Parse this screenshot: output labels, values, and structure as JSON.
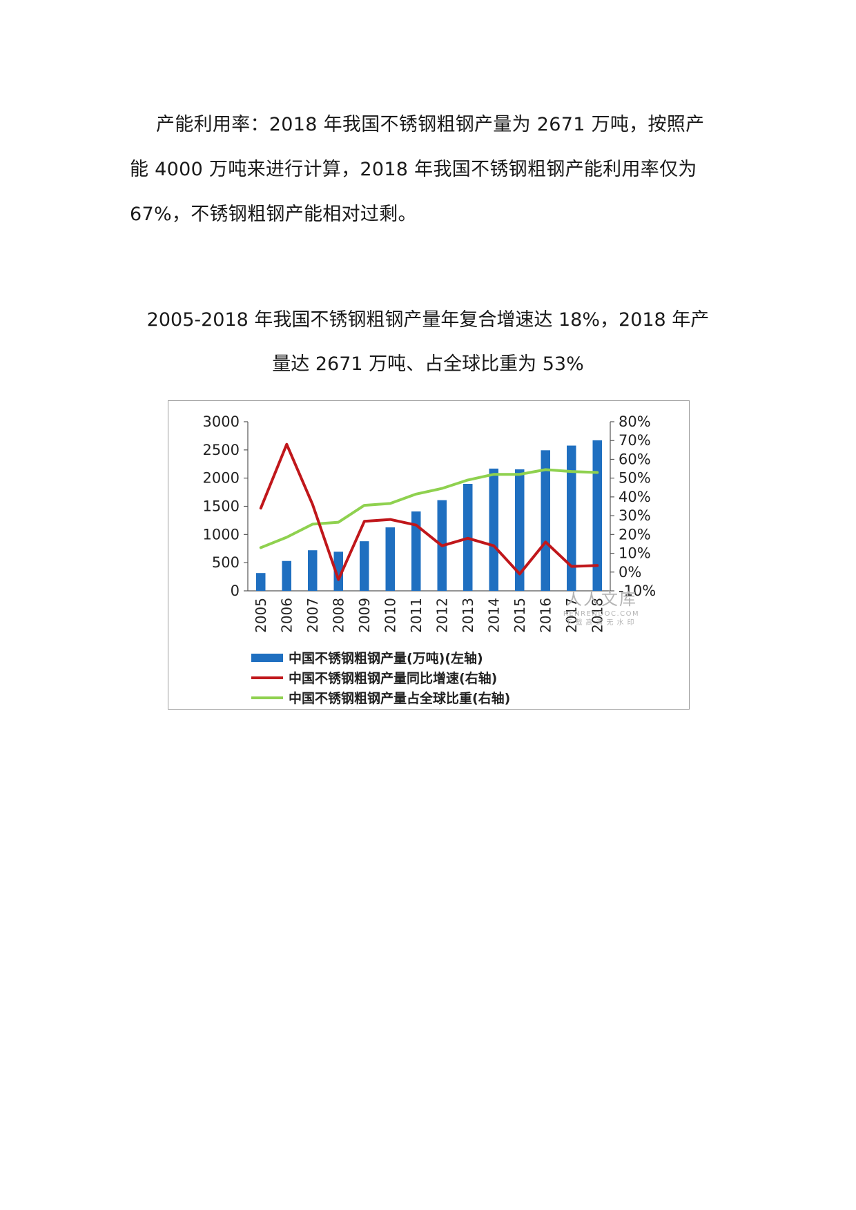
{
  "paragraph": {
    "lines": [
      "产能利用率：2018 年我国不锈钢粗钢产量为 2671 万吨，按照产",
      "能 4000 万吨来进行计算，2018 年我国不锈钢粗钢产能利用率仅为",
      "67%，不锈钢粗钢产能相对过剩。"
    ]
  },
  "figure": {
    "caption_lines": [
      "2005-2018 年我国不锈钢粗钢产量年复合增速达 18%，2018 年产",
      "量达 2671 万吨、占全球比重为 53%"
    ]
  },
  "watermark": {
    "main": "人人文库",
    "url": "RENRENDOC.COM",
    "sub": "下载高清无水印"
  },
  "chart_data": {
    "type": "bar",
    "categories": [
      "2005",
      "2006",
      "2007",
      "2008",
      "2009",
      "2010",
      "2011",
      "2012",
      "2013",
      "2014",
      "2015",
      "2016",
      "2017",
      "2018"
    ],
    "series": [
      {
        "name": "中国不锈钢粗钢产量(万吨)(左轴)",
        "type": "bar",
        "axis": "left",
        "color": "#1f6fc0",
        "values": [
          316,
          530,
          720,
          694,
          880,
          1126,
          1409,
          1609,
          1898,
          2169,
          2156,
          2494,
          2577,
          2671
        ]
      },
      {
        "name": "中国不锈钢粗钢产量同比增速(右轴)",
        "type": "line",
        "axis": "right",
        "color": "#c0171b",
        "values": [
          0.34,
          0.68,
          0.36,
          -0.04,
          0.27,
          0.28,
          0.25,
          0.14,
          0.18,
          0.14,
          -0.01,
          0.16,
          0.03,
          0.035
        ]
      },
      {
        "name": "中国不锈钢粗钢产量占全球比重(右轴)",
        "type": "line",
        "axis": "right",
        "color": "#8fd14f",
        "values": [
          0.13,
          0.185,
          0.255,
          0.265,
          0.355,
          0.365,
          0.415,
          0.445,
          0.49,
          0.52,
          0.52,
          0.545,
          0.535,
          0.53
        ]
      }
    ],
    "left_axis": {
      "ticks": [
        "0",
        "500",
        "1000",
        "1500",
        "2000",
        "2500",
        "3000"
      ],
      "ylim": [
        0,
        3000
      ]
    },
    "right_axis": {
      "ticks": [
        "-10%",
        "0%",
        "10%",
        "20%",
        "30%",
        "40%",
        "50%",
        "60%",
        "70%",
        "80%"
      ],
      "ylim": [
        -0.1,
        0.8
      ]
    },
    "grid": false,
    "legend_position": "bottom"
  },
  "colors": {
    "bar": "#1f6fc0",
    "growth_line": "#c0171b",
    "share_line": "#8fd14f",
    "frame": "#9a9a9a"
  }
}
